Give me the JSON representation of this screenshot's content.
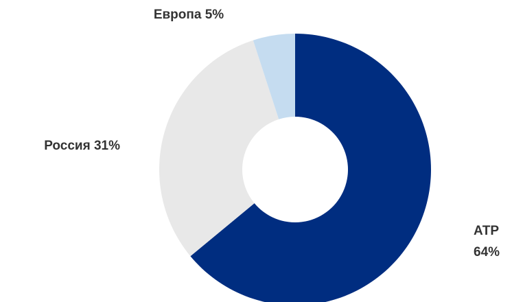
{
  "chart_data": {
    "type": "donut",
    "categories": [
      "АТР",
      "Россия",
      "Европа"
    ],
    "values": [
      64,
      31,
      5
    ],
    "value_labels": [
      "64%",
      "31%",
      "5%"
    ],
    "colors": [
      "#002d80",
      "#e8e8e8",
      "#c5dcf0"
    ]
  }
}
